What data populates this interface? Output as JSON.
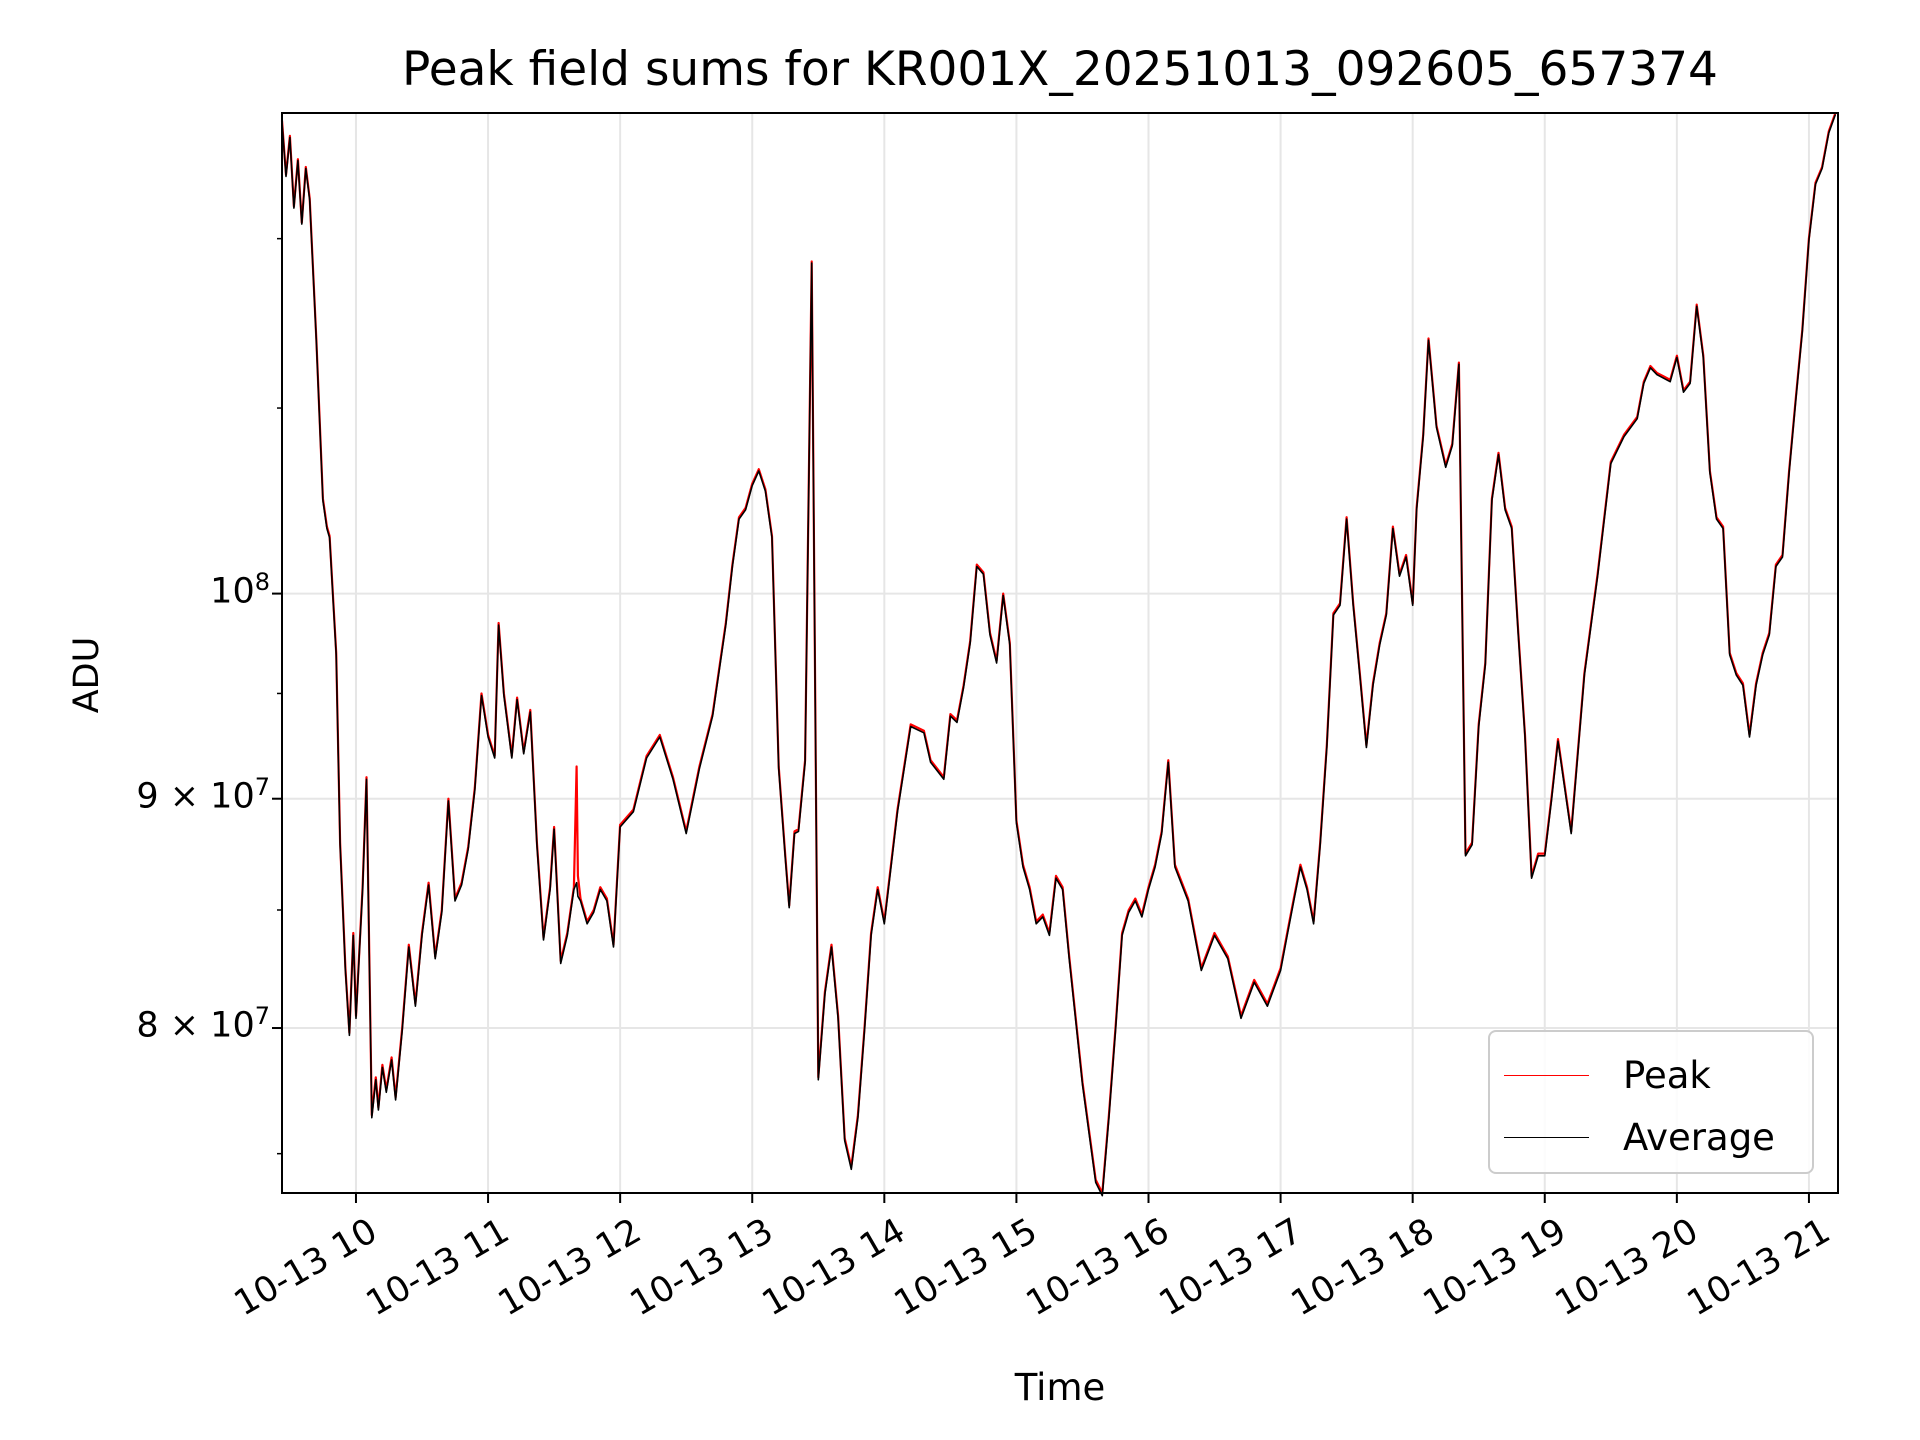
{
  "chart_data": {
    "type": "line",
    "title": "Peak field sums for KR001X_20251013_092605_657374",
    "xlabel": "Time",
    "ylabel": "ADU",
    "yscale": "log",
    "grid": true,
    "legend_position": "lower-right",
    "xlim": [
      9.44,
      21.22
    ],
    "ylim": [
      73500000,
      128000000
    ],
    "x_tick_values": [
      10,
      11,
      12,
      13,
      14,
      15,
      16,
      17,
      18,
      19,
      20,
      21
    ],
    "x_tick_labels": [
      "10-13 10",
      "10-13 11",
      "10-13 12",
      "10-13 13",
      "10-13 14",
      "10-13 15",
      "10-13 16",
      "10-13 17",
      "10-13 18",
      "10-13 19",
      "10-13 20",
      "10-13 21"
    ],
    "y_ticks": [
      {
        "value": 80000000,
        "mantissa": "8 × 10",
        "exp": "7"
      },
      {
        "value": 90000000,
        "mantissa": "9 × 10",
        "exp": "7"
      },
      {
        "value": 100000000,
        "mantissa": "10",
        "exp": "8"
      }
    ],
    "x_unit_note": "hours on 2025-10-13",
    "series": [
      {
        "name": "Peak",
        "color": "#ff0000",
        "x": [
          9.44,
          9.47,
          9.5,
          9.53,
          9.56,
          9.59,
          9.62,
          9.65,
          9.7,
          9.75,
          9.78,
          9.8,
          9.85,
          9.88,
          9.92,
          9.95,
          9.98,
          10.0,
          10.05,
          10.08,
          10.12,
          10.15,
          10.17,
          10.2,
          10.23,
          10.27,
          10.3,
          10.35,
          10.4,
          10.45,
          10.5,
          10.55,
          10.6,
          10.65,
          10.7,
          10.75,
          10.8,
          10.85,
          10.9,
          10.95,
          11.0,
          11.05,
          11.08,
          11.12,
          11.18,
          11.22,
          11.27,
          11.32,
          11.37,
          11.42,
          11.47,
          11.5,
          11.55,
          11.6,
          11.65,
          11.67,
          11.68,
          11.7,
          11.75,
          11.8,
          11.85,
          11.9,
          11.95,
          12.0,
          12.1,
          12.2,
          12.3,
          12.4,
          12.5,
          12.6,
          12.7,
          12.8,
          12.85,
          12.9,
          12.95,
          13.0,
          13.05,
          13.1,
          13.15,
          13.2,
          13.25,
          13.28,
          13.32,
          13.35,
          13.4,
          13.45,
          13.5,
          13.55,
          13.6,
          13.65,
          13.7,
          13.75,
          13.8,
          13.85,
          13.9,
          13.95,
          14.0,
          14.1,
          14.2,
          14.3,
          14.35,
          14.4,
          14.45,
          14.5,
          14.55,
          14.6,
          14.65,
          14.7,
          14.75,
          14.8,
          14.85,
          14.9,
          14.95,
          15.0,
          15.05,
          15.1,
          15.15,
          15.2,
          15.25,
          15.3,
          15.35,
          15.4,
          15.5,
          15.6,
          15.65,
          15.7,
          15.75,
          15.8,
          15.85,
          15.9,
          15.95,
          16.0,
          16.05,
          16.1,
          16.15,
          16.2,
          16.3,
          16.4,
          16.5,
          16.6,
          16.7,
          16.8,
          16.9,
          17.0,
          17.05,
          17.1,
          17.15,
          17.2,
          17.25,
          17.3,
          17.35,
          17.4,
          17.45,
          17.5,
          17.55,
          17.6,
          17.65,
          17.7,
          17.75,
          17.8,
          17.85,
          17.9,
          17.95,
          18.0,
          18.03,
          18.08,
          18.12,
          18.18,
          18.25,
          18.3,
          18.35,
          18.4,
          18.45,
          18.5,
          18.55,
          18.6,
          18.65,
          18.7,
          18.75,
          18.8,
          18.85,
          18.9,
          18.95,
          19.0,
          19.05,
          19.1,
          19.2,
          19.3,
          19.4,
          19.5,
          19.6,
          19.7,
          19.75,
          19.8,
          19.85,
          19.9,
          19.95,
          20.0,
          20.05,
          20.1,
          20.15,
          20.2,
          20.25,
          20.3,
          20.35,
          20.4,
          20.45,
          20.5,
          20.55,
          20.6,
          20.65,
          20.7,
          20.75,
          20.8,
          20.85,
          20.9,
          20.95,
          21.0,
          21.05,
          21.1,
          21.15,
          21.2
        ],
        "values": [
          127500000,
          124000000,
          126500000,
          122000000,
          125000000,
          121000000,
          124500000,
          122500000,
          114000000,
          105000000,
          103500000,
          103000000,
          97000000,
          88000000,
          82500000,
          79800000,
          84000000,
          80500000,
          86000000,
          91000000,
          76500000,
          78000000,
          76800000,
          78500000,
          77500000,
          78800000,
          77200000,
          80000000,
          83500000,
          81000000,
          84000000,
          86200000,
          83000000,
          85000000,
          90000000,
          85500000,
          86200000,
          87800000,
          90500000,
          95000000,
          93000000,
          92000000,
          98500000,
          95000000,
          92000000,
          94800000,
          92200000,
          94200000,
          88000000,
          83800000,
          86000000,
          88700000,
          82800000,
          84000000,
          86000000,
          91500000,
          86500000,
          85500000,
          84500000,
          85000000,
          86000000,
          85500000,
          83500000,
          88800000,
          89500000,
          92000000,
          93000000,
          91000000,
          88500000,
          91500000,
          94000000,
          98500000,
          101500000,
          104000000,
          104500000,
          105800000,
          106600000,
          105500000,
          103000000,
          91500000,
          87400000,
          85200000,
          88500000,
          88600000,
          91800000,
          118600000,
          78000000,
          81500000,
          83500000,
          80500000,
          75600000,
          74500000,
          76500000,
          80000000,
          84000000,
          86000000,
          84500000,
          89500000,
          93500000,
          93200000,
          91800000,
          91400000,
          91000000,
          94000000,
          93700000,
          95400000,
          97600000,
          101500000,
          101100000,
          98000000,
          96600000,
          100000000,
          97500000,
          89000000,
          87000000,
          86000000,
          84500000,
          84800000,
          84000000,
          86500000,
          86000000,
          83000000,
          77800000,
          74000000,
          73500000,
          76500000,
          80000000,
          84000000,
          85000000,
          85500000,
          84800000,
          86000000,
          87000000,
          88500000,
          91800000,
          87000000,
          85500000,
          82500000,
          84000000,
          83000000,
          80500000,
          82000000,
          81000000,
          82500000,
          84000000,
          85500000,
          87000000,
          86000000,
          84500000,
          88000000,
          92500000,
          99000000,
          99500000,
          104000000,
          99500000,
          96000000,
          92500000,
          95500000,
          97500000,
          99000000,
          103500000,
          101000000,
          102000000,
          99500000,
          104500000,
          108500000,
          114000000,
          109000000,
          106800000,
          108000000,
          112600000,
          87500000,
          88000000,
          93500000,
          96500000,
          105000000,
          107500000,
          104500000,
          103500000,
          98000000,
          93000000,
          86500000,
          87500000,
          87500000,
          90000000,
          92800000,
          88500000,
          96000000,
          101000000,
          107000000,
          108500000,
          109500000,
          111500000,
          112400000,
          112000000,
          111800000,
          111600000,
          113000000,
          111000000,
          111500000,
          116000000,
          113000000,
          106500000,
          104000000,
          103500000,
          97000000,
          96000000,
          95500000,
          93000000,
          95500000,
          97000000,
          98000000,
          101500000,
          102000000,
          106500000,
          110500000,
          114500000,
          120000000,
          123500000,
          124500000,
          126800000,
          128000000
        ]
      },
      {
        "name": "Average",
        "color": "#000000",
        "x": [
          9.44,
          9.47,
          9.5,
          9.53,
          9.56,
          9.59,
          9.62,
          9.65,
          9.7,
          9.75,
          9.78,
          9.8,
          9.85,
          9.88,
          9.92,
          9.95,
          9.98,
          10.0,
          10.05,
          10.08,
          10.12,
          10.15,
          10.17,
          10.2,
          10.23,
          10.27,
          10.3,
          10.35,
          10.4,
          10.45,
          10.5,
          10.55,
          10.6,
          10.65,
          10.7,
          10.75,
          10.8,
          10.85,
          10.9,
          10.95,
          11.0,
          11.05,
          11.08,
          11.12,
          11.18,
          11.22,
          11.27,
          11.32,
          11.37,
          11.42,
          11.47,
          11.5,
          11.55,
          11.6,
          11.65,
          11.67,
          11.68,
          11.7,
          11.75,
          11.8,
          11.85,
          11.9,
          11.95,
          12.0,
          12.1,
          12.2,
          12.3,
          12.4,
          12.5,
          12.6,
          12.7,
          12.8,
          12.85,
          12.9,
          12.95,
          13.0,
          13.05,
          13.1,
          13.15,
          13.2,
          13.25,
          13.28,
          13.32,
          13.35,
          13.4,
          13.45,
          13.5,
          13.55,
          13.6,
          13.65,
          13.7,
          13.75,
          13.8,
          13.85,
          13.9,
          13.95,
          14.0,
          14.1,
          14.2,
          14.3,
          14.35,
          14.4,
          14.45,
          14.5,
          14.55,
          14.6,
          14.65,
          14.7,
          14.75,
          14.8,
          14.85,
          14.9,
          14.95,
          15.0,
          15.05,
          15.1,
          15.15,
          15.2,
          15.25,
          15.3,
          15.35,
          15.4,
          15.5,
          15.6,
          15.65,
          15.7,
          15.75,
          15.8,
          15.85,
          15.9,
          15.95,
          16.0,
          16.05,
          16.1,
          16.15,
          16.2,
          16.3,
          16.4,
          16.5,
          16.6,
          16.7,
          16.8,
          16.9,
          17.0,
          17.05,
          17.1,
          17.15,
          17.2,
          17.25,
          17.3,
          17.35,
          17.4,
          17.45,
          17.5,
          17.55,
          17.6,
          17.65,
          17.7,
          17.75,
          17.8,
          17.85,
          17.9,
          17.95,
          18.0,
          18.03,
          18.08,
          18.12,
          18.18,
          18.25,
          18.3,
          18.35,
          18.4,
          18.45,
          18.5,
          18.55,
          18.6,
          18.65,
          18.7,
          18.75,
          18.8,
          18.85,
          18.9,
          18.95,
          19.0,
          19.05,
          19.1,
          19.2,
          19.3,
          19.4,
          19.5,
          19.6,
          19.7,
          19.75,
          19.8,
          19.85,
          19.9,
          19.95,
          20.0,
          20.05,
          20.1,
          20.15,
          20.2,
          20.25,
          20.3,
          20.35,
          20.4,
          20.45,
          20.5,
          20.55,
          20.6,
          20.65,
          20.7,
          20.75,
          20.8,
          20.85,
          20.9,
          20.95,
          21.0,
          21.05,
          21.1,
          21.15,
          21.2
        ],
        "values": [
          127400000,
          123900000,
          126400000,
          121900000,
          124900000,
          120900000,
          124400000,
          122400000,
          113900000,
          104900000,
          103400000,
          102900000,
          96900000,
          87900000,
          82400000,
          79700000,
          83900000,
          80400000,
          85900000,
          90900000,
          76400000,
          77900000,
          76700000,
          78400000,
          77400000,
          78700000,
          77100000,
          79900000,
          83400000,
          80900000,
          83900000,
          86100000,
          82900000,
          84900000,
          89900000,
          85400000,
          86100000,
          87700000,
          90400000,
          94900000,
          92900000,
          91900000,
          98400000,
          94900000,
          91900000,
          94700000,
          92100000,
          94100000,
          87900000,
          83700000,
          85900000,
          88600000,
          82700000,
          83900000,
          85900000,
          86200000,
          85600000,
          85400000,
          84400000,
          84900000,
          85900000,
          85400000,
          83400000,
          88700000,
          89400000,
          91900000,
          92900000,
          90900000,
          88400000,
          91400000,
          93900000,
          98400000,
          101400000,
          103900000,
          104400000,
          105700000,
          106500000,
          105400000,
          102900000,
          91400000,
          87300000,
          85100000,
          88400000,
          88500000,
          91700000,
          118500000,
          77900000,
          81400000,
          83400000,
          80400000,
          75500000,
          74400000,
          76400000,
          79900000,
          83900000,
          85900000,
          84400000,
          89400000,
          93400000,
          93100000,
          91700000,
          91300000,
          90900000,
          93900000,
          93600000,
          95300000,
          97500000,
          101400000,
          101000000,
          97900000,
          96500000,
          99900000,
          97400000,
          88900000,
          86900000,
          85900000,
          84400000,
          84700000,
          83900000,
          86400000,
          85900000,
          82900000,
          77700000,
          73900000,
          73400000,
          76400000,
          79900000,
          83900000,
          84900000,
          85400000,
          84700000,
          85900000,
          86900000,
          88400000,
          91700000,
          86900000,
          85400000,
          82400000,
          83900000,
          82900000,
          80400000,
          81900000,
          80900000,
          82400000,
          83900000,
          85400000,
          86900000,
          85900000,
          84400000,
          87900000,
          92400000,
          98900000,
          99400000,
          103900000,
          99400000,
          95900000,
          92400000,
          95400000,
          97400000,
          98900000,
          103400000,
          100900000,
          101900000,
          99400000,
          104400000,
          108400000,
          113900000,
          108900000,
          106700000,
          107900000,
          112500000,
          87400000,
          87900000,
          93400000,
          96400000,
          104900000,
          107400000,
          104400000,
          103400000,
          97900000,
          92900000,
          86400000,
          87400000,
          87400000,
          89900000,
          92700000,
          88400000,
          95900000,
          100900000,
          106900000,
          108400000,
          109400000,
          111400000,
          112300000,
          111900000,
          111700000,
          111500000,
          112900000,
          110900000,
          111400000,
          115900000,
          112900000,
          106400000,
          103900000,
          103400000,
          96900000,
          95900000,
          95400000,
          92900000,
          95400000,
          96900000,
          97900000,
          101400000,
          101900000,
          106400000,
          110400000,
          114400000,
          119900000,
          123400000,
          124400000,
          126700000,
          127900000
        ]
      }
    ]
  }
}
